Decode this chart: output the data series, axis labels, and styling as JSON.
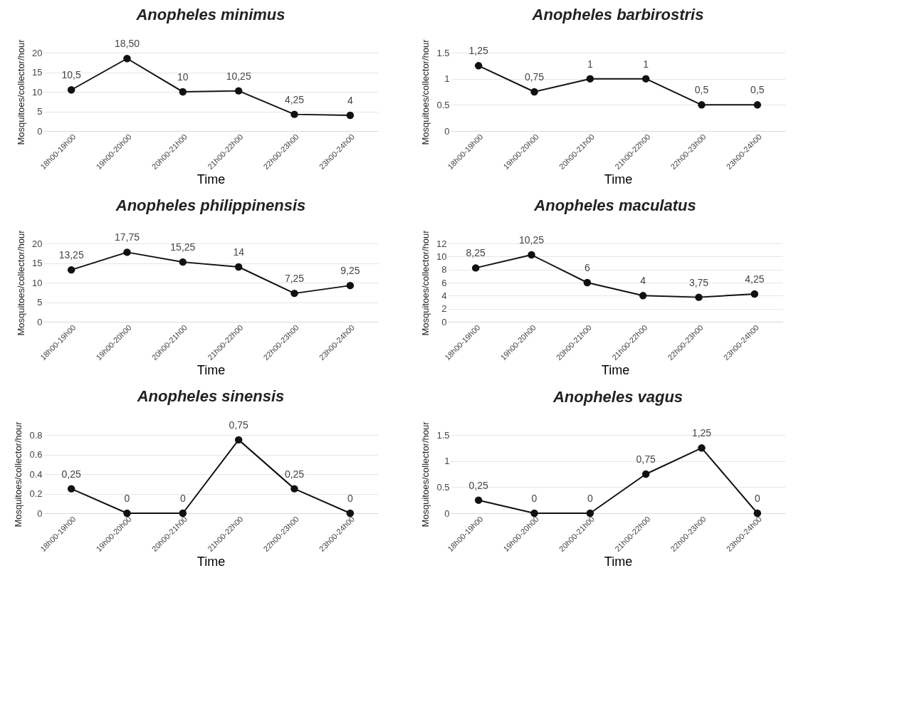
{
  "chart_data": [
    {
      "type": "line",
      "title": "Anopheles minimus",
      "xlabel": "Time",
      "ylabel": "Mosquitoes/collector/hour",
      "categories": [
        "18h00-19h00",
        "19h00-20h00",
        "20h00-21h00",
        "21h00-22h00",
        "22h00-23h00",
        "23h00-24h00"
      ],
      "series": [
        {
          "color": "#111111",
          "values": [
            10.5,
            18.5,
            10,
            10.25,
            4.25,
            4
          ],
          "value_labels": [
            "10,5",
            "18,50",
            "10",
            "10,25",
            "4,25",
            "4"
          ]
        }
      ],
      "ylim": [
        0,
        20
      ],
      "yticks": [
        0,
        5,
        10,
        15,
        20
      ],
      "grid": "y",
      "marker": "circle"
    },
    {
      "type": "line",
      "title": "Anopheles barbirostris",
      "xlabel": "Time",
      "ylabel": "Mosquitoes/collector/hour",
      "categories": [
        "18h00-19h00",
        "19h00-20h00",
        "20h00-21h00",
        "21h00-22h00",
        "22h00-23h00",
        "23h00-24h00"
      ],
      "series": [
        {
          "color": "#111111",
          "values": [
            1.25,
            0.75,
            1,
            1,
            0.5,
            0.5
          ],
          "value_labels": [
            "1,25",
            "0,75",
            "1",
            "1",
            "0,5",
            "0,5"
          ]
        }
      ],
      "ylim": [
        0,
        1.5
      ],
      "yticks": [
        0,
        0.5,
        1,
        1.5
      ],
      "grid": "y",
      "marker": "circle"
    },
    {
      "type": "line",
      "title": "Anopheles philippinensis",
      "xlabel": "Time",
      "ylabel": "Mosquitoes/collector/hour",
      "categories": [
        "18h00-19h00",
        "19h00-20h00",
        "20h00-21h00",
        "21h00-22h00",
        "22h00-23h00",
        "23h00-24h00"
      ],
      "series": [
        {
          "color": "#111111",
          "values": [
            13.25,
            17.75,
            15.25,
            14,
            7.25,
            9.25
          ],
          "value_labels": [
            "13,25",
            "17,75",
            "15,25",
            "14",
            "7,25",
            "9,25"
          ]
        }
      ],
      "ylim": [
        0,
        20
      ],
      "yticks": [
        0,
        5,
        10,
        15,
        20
      ],
      "grid": "y",
      "marker": "circle"
    },
    {
      "type": "line",
      "title": "Anopheles maculatus",
      "xlabel": "Time",
      "ylabel": "Mosquitoes/collector/hour",
      "categories": [
        "18h00-19h00",
        "19h00-20h00",
        "20h00-21h00",
        "21h00-22h00",
        "22h00-23h00",
        "23h00-24h00"
      ],
      "series": [
        {
          "color": "#111111",
          "values": [
            8.25,
            10.25,
            6,
            4,
            3.75,
            4.25
          ],
          "value_labels": [
            "8,25",
            "10,25",
            "6",
            "4",
            "3,75",
            "4,25"
          ]
        }
      ],
      "ylim": [
        0,
        12
      ],
      "yticks": [
        0,
        2,
        4,
        6,
        8,
        10,
        12
      ],
      "grid": "y",
      "marker": "circle"
    },
    {
      "type": "line",
      "title": "Anopheles sinensis",
      "xlabel": "Time",
      "ylabel": "Mosquitoes/collector/hour",
      "categories": [
        "18h00-19h00",
        "19h00-20h00",
        "20h00-21h00",
        "21h00-22h00",
        "22h00-23h00",
        "23h00-24h00"
      ],
      "series": [
        {
          "color": "#111111",
          "values": [
            0.25,
            0,
            0,
            0.75,
            0.25,
            0
          ],
          "value_labels": [
            "0,25",
            "0",
            "0",
            "0,75",
            "0,25",
            "0"
          ]
        }
      ],
      "ylim": [
        0,
        0.8
      ],
      "yticks": [
        0,
        0.2,
        0.4,
        0.6,
        0.8
      ],
      "grid": "y",
      "marker": "circle"
    },
    {
      "type": "line",
      "title": "Anopheles vagus",
      "xlabel": "Time",
      "ylabel": "Mosquitoes/collector/hour",
      "categories": [
        "18h00-19h00",
        "19h00-20h00",
        "20h00-21h00",
        "21h00-22h00",
        "22h00-23h00",
        "23h00-24h00"
      ],
      "series": [
        {
          "color": "#111111",
          "values": [
            0.25,
            0,
            0,
            0.75,
            1.25,
            0
          ],
          "value_labels": [
            "0,25",
            "0",
            "0",
            "0,75",
            "1,25",
            "0"
          ]
        }
      ],
      "ylim": [
        0,
        1.5
      ],
      "yticks": [
        0,
        0.5,
        1,
        1.5
      ],
      "grid": "y",
      "marker": "circle"
    }
  ]
}
